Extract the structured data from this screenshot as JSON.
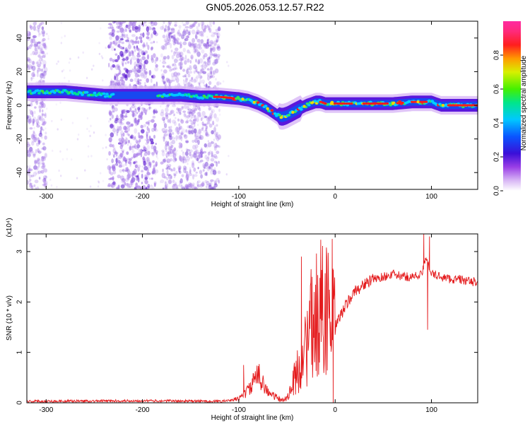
{
  "title": "GN05.2026.053.12.57.R22",
  "colors": {
    "trace": "#e41a1c",
    "axis": "#000000",
    "scatter": "#a678e8"
  },
  "chart_data": [
    {
      "type": "heatmap",
      "title": "GN05.2026.053.12.57.R22",
      "xlabel": "Height of straight line (km)",
      "ylabel": "Frequency (Hz)",
      "xlim": [
        -320,
        148
      ],
      "ylim": [
        -50,
        50
      ],
      "xticks": [
        -300,
        -200,
        -100,
        0,
        100
      ],
      "xtick_labels": [
        "-300",
        "-200",
        "-100",
        "0",
        "100"
      ],
      "yticks": [
        -40,
        -20,
        0,
        20,
        40
      ],
      "ytick_labels": [
        "-40",
        "-20",
        "0",
        "20",
        "40"
      ],
      "colorbar": {
        "label": "Normalized spectral amplitude",
        "range": [
          0,
          1
        ],
        "ticks": [
          0.0,
          0.2,
          0.4,
          0.6,
          0.8
        ],
        "tick_labels": [
          "0.0",
          "0.2",
          "0.4",
          "0.6",
          "0.8"
        ],
        "colormap": "rainbow (purple-blue-cyan-green-yellow-red-magenta)"
      },
      "ridge_center": {
        "x": [
          -320,
          -300,
          -280,
          -260,
          -240,
          -230,
          -220,
          -200,
          -180,
          -160,
          -140,
          -120,
          -100,
          -90,
          -80,
          -70,
          -60,
          -55,
          -50,
          -40,
          -30,
          -25,
          -20,
          -15,
          -10,
          0,
          20,
          40,
          60,
          80,
          100,
          110,
          120,
          148
        ],
        "y": [
          8,
          8,
          8,
          7,
          6,
          6,
          6,
          6,
          6,
          6,
          5,
          5,
          4,
          3,
          1,
          -2,
          -6,
          -7,
          -6,
          -3,
          0,
          1,
          2,
          2,
          1,
          1,
          1,
          1,
          1,
          2,
          2,
          0,
          0,
          0
        ]
      },
      "intense_band_x": [
        -120,
        148
      ],
      "scatter_regions_x": [
        [
          -320,
          -300
        ],
        [
          -235,
          -185
        ],
        [
          -180,
          -120
        ]
      ]
    },
    {
      "type": "line",
      "title": "",
      "xlabel": "Height of straight line (km)",
      "ylabel": "SNR (10 * v/v)",
      "y_multiplier": "(x10⁴)",
      "xlim": [
        -320,
        148
      ],
      "ylim": [
        0,
        3.35
      ],
      "xticks": [
        -300,
        -200,
        -100,
        0,
        100
      ],
      "xtick_labels": [
        "-300",
        "-200",
        "-100",
        "0",
        "100"
      ],
      "yticks": [
        0,
        1,
        2,
        3
      ],
      "ytick_labels": [
        "0",
        "1",
        "2",
        "3"
      ],
      "series": [
        {
          "x": [
            -320,
            -200,
            -120,
            -105,
            -100,
            -90,
            -85,
            -80,
            -75,
            -70,
            -65,
            -60,
            -55,
            -50,
            -45,
            -40,
            -35,
            -30,
            -25,
            -20,
            -15,
            -10,
            -5,
            0,
            10,
            20,
            30,
            40,
            50,
            60,
            70,
            80,
            90,
            95,
            100,
            110,
            120,
            130,
            140,
            148
          ],
          "y": [
            0.03,
            0.04,
            0.03,
            0.05,
            0.1,
            0.25,
            0.4,
            0.55,
            0.45,
            0.2,
            0.15,
            0.1,
            0.05,
            0.1,
            0.3,
            0.6,
            0.8,
            1.1,
            1.4,
            1.7,
            1.9,
            2.0,
            1.6,
            1.5,
            1.9,
            2.2,
            2.35,
            2.45,
            2.5,
            2.55,
            2.5,
            2.5,
            2.55,
            2.9,
            2.55,
            2.5,
            2.45,
            2.45,
            2.4,
            2.4
          ],
          "spikes": [
            {
              "x": -95,
              "y": 0.75
            },
            {
              "x": -58,
              "y": 0.02
            },
            {
              "x": -35,
              "y": 2.9
            },
            {
              "x": -25,
              "y": 2.65
            },
            {
              "x": -3,
              "y": 3.25
            },
            {
              "x": -2,
              "y": 0.0
            },
            {
              "x": 92,
              "y": 3.35
            },
            {
              "x": 96,
              "y": 1.45
            },
            {
              "x": 98,
              "y": 3.3
            }
          ]
        }
      ]
    }
  ]
}
